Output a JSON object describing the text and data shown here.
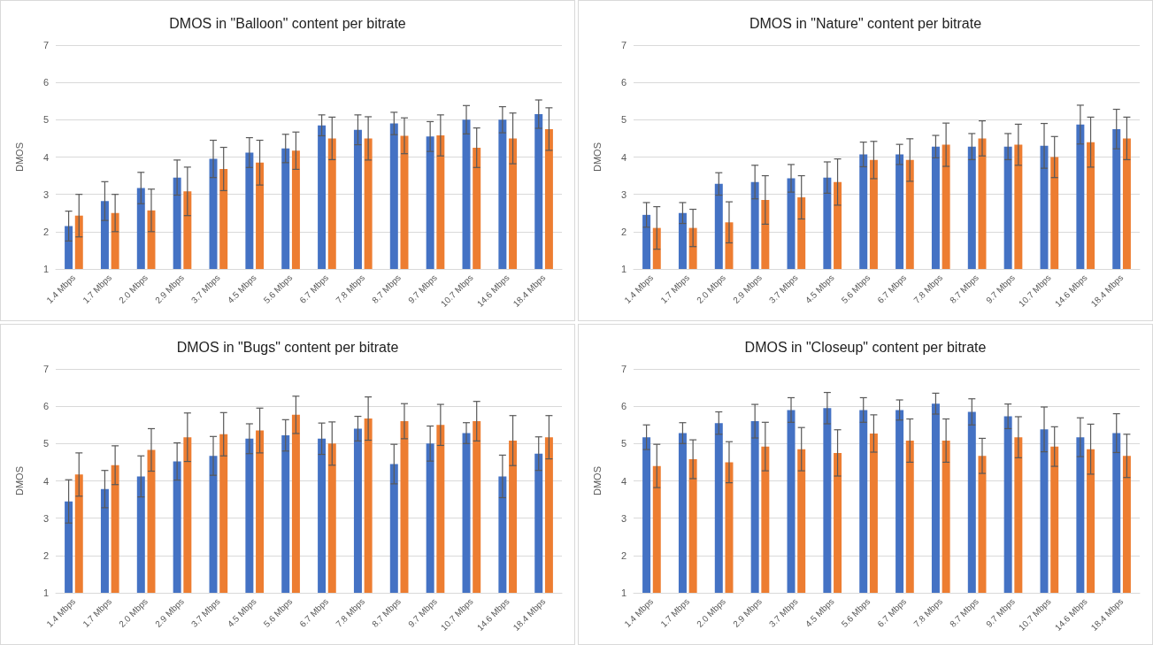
{
  "chart_data": [
    {
      "type": "bar",
      "title": "DMOS in \"Balloon\" content per bitrate",
      "ylabel": "DMOS",
      "categories": [
        "1.4 Mbps",
        "1.7 Mbps",
        "2.0 Mbps",
        "2.9 Mbps",
        "3.7 Mbps",
        "4.5 Mbps",
        "5.6 Mbps",
        "6.7 Mbps",
        "7.8 Mbps",
        "8.7 Mbps",
        "9.7 Mbps",
        "10.7 Mbps",
        "14.6 Mbps",
        "18.4 Mbps"
      ],
      "series": [
        {
          "color": "#4472c4",
          "values": [
            2.15,
            2.82,
            3.17,
            3.45,
            3.95,
            4.12,
            4.23,
            4.85,
            4.73,
            4.9,
            4.55,
            5.0,
            5.0,
            5.15
          ],
          "errors": [
            0.4,
            0.52,
            0.42,
            0.47,
            0.5,
            0.4,
            0.38,
            0.28,
            0.4,
            0.3,
            0.4,
            0.38,
            0.35,
            0.38
          ]
        },
        {
          "color": "#ed7d31",
          "values": [
            2.43,
            2.5,
            2.57,
            3.08,
            3.68,
            3.85,
            4.17,
            4.5,
            4.5,
            4.57,
            4.58,
            4.25,
            4.5,
            4.75
          ],
          "errors": [
            0.57,
            0.5,
            0.57,
            0.65,
            0.58,
            0.6,
            0.5,
            0.57,
            0.58,
            0.48,
            0.55,
            0.53,
            0.68,
            0.57
          ]
        }
      ],
      "ylim": [
        1,
        7
      ],
      "yticks": [
        1,
        2,
        3,
        4,
        5,
        6,
        7
      ],
      "grid": "y"
    },
    {
      "type": "bar",
      "title": "DMOS in \"Nature\" content per bitrate",
      "ylabel": "DMOS",
      "categories": [
        "1.4 Mbps",
        "1.7 Mbps",
        "2.0 Mbps",
        "2.9 Mbps",
        "3.7 Mbps",
        "4.5 Mbps",
        "5.6 Mbps",
        "6.7 Mbps",
        "7.8 Mbps",
        "8.7 Mbps",
        "9.7 Mbps",
        "10.7 Mbps",
        "14.6 Mbps",
        "18.4 Mbps"
      ],
      "series": [
        {
          "color": "#4472c4",
          "values": [
            2.45,
            2.5,
            3.28,
            3.33,
            3.43,
            3.45,
            4.07,
            4.07,
            4.28,
            4.28,
            4.28,
            4.3,
            4.87,
            4.75
          ],
          "errors": [
            0.33,
            0.28,
            0.3,
            0.45,
            0.37,
            0.42,
            0.33,
            0.27,
            0.3,
            0.35,
            0.35,
            0.6,
            0.52,
            0.53
          ]
        },
        {
          "color": "#ed7d31",
          "values": [
            2.1,
            2.1,
            2.25,
            2.85,
            2.92,
            3.33,
            3.92,
            3.92,
            4.33,
            4.5,
            4.33,
            4.0,
            4.4,
            4.5
          ],
          "errors": [
            0.57,
            0.5,
            0.55,
            0.65,
            0.58,
            0.62,
            0.5,
            0.57,
            0.58,
            0.47,
            0.55,
            0.55,
            0.67,
            0.57
          ]
        }
      ],
      "ylim": [
        1,
        7
      ],
      "yticks": [
        1,
        2,
        3,
        4,
        5,
        6,
        7
      ],
      "grid": "y"
    },
    {
      "type": "bar",
      "title": "DMOS in \"Bugs\" content per bitrate",
      "ylabel": "DMOS",
      "categories": [
        "1.4 Mbps",
        "1.7 Mbps",
        "2.0 Mbps",
        "2.9 Mbps",
        "3.7 Mbps",
        "4.5 Mbps",
        "5.6 Mbps",
        "6.7 Mbps",
        "7.8 Mbps",
        "8.7 Mbps",
        "9.7 Mbps",
        "10.7 Mbps",
        "14.6 Mbps",
        "18.4 Mbps"
      ],
      "series": [
        {
          "color": "#4472c4",
          "values": [
            3.45,
            3.78,
            4.12,
            4.52,
            4.67,
            5.13,
            5.22,
            5.13,
            5.4,
            4.45,
            5.0,
            5.28,
            4.12,
            4.73
          ],
          "errors": [
            0.58,
            0.5,
            0.55,
            0.5,
            0.52,
            0.4,
            0.42,
            0.42,
            0.33,
            0.53,
            0.47,
            0.28,
            0.57,
            0.45
          ]
        },
        {
          "color": "#ed7d31",
          "values": [
            4.17,
            4.42,
            4.83,
            5.17,
            5.25,
            5.35,
            5.77,
            5.0,
            5.67,
            5.6,
            5.5,
            5.6,
            5.08,
            5.17
          ],
          "errors": [
            0.58,
            0.52,
            0.57,
            0.65,
            0.58,
            0.6,
            0.5,
            0.58,
            0.58,
            0.47,
            0.55,
            0.53,
            0.67,
            0.58
          ]
        }
      ],
      "ylim": [
        1,
        7
      ],
      "yticks": [
        1,
        2,
        3,
        4,
        5,
        6,
        7
      ],
      "grid": "y"
    },
    {
      "type": "bar",
      "title": "DMOS in \"Closeup\" content per bitrate",
      "ylabel": "DMOS",
      "categories": [
        "1.4 Mbps",
        "1.7 Mbps",
        "2.0 Mbps",
        "2.9 Mbps",
        "3.7 Mbps",
        "4.5 Mbps",
        "5.6 Mbps",
        "6.7 Mbps",
        "7.8 Mbps",
        "8.7 Mbps",
        "9.7 Mbps",
        "10.7 Mbps",
        "14.6 Mbps",
        "18.4 Mbps"
      ],
      "series": [
        {
          "color": "#4472c4",
          "values": [
            5.17,
            5.28,
            5.55,
            5.6,
            5.9,
            5.95,
            5.9,
            5.9,
            6.07,
            5.85,
            5.73,
            5.38,
            5.17,
            5.28
          ],
          "errors": [
            0.33,
            0.28,
            0.3,
            0.45,
            0.33,
            0.42,
            0.33,
            0.27,
            0.28,
            0.35,
            0.33,
            0.6,
            0.52,
            0.52
          ]
        },
        {
          "color": "#ed7d31",
          "values": [
            4.4,
            4.58,
            4.5,
            4.92,
            4.85,
            4.75,
            5.27,
            5.08,
            5.08,
            4.67,
            5.17,
            4.92,
            4.85,
            4.67
          ],
          "errors": [
            0.58,
            0.52,
            0.55,
            0.65,
            0.58,
            0.62,
            0.5,
            0.58,
            0.58,
            0.47,
            0.55,
            0.53,
            0.67,
            0.58
          ]
        }
      ],
      "ylim": [
        1,
        7
      ],
      "yticks": [
        1,
        2,
        3,
        4,
        5,
        6,
        7
      ],
      "grid": "y"
    }
  ]
}
